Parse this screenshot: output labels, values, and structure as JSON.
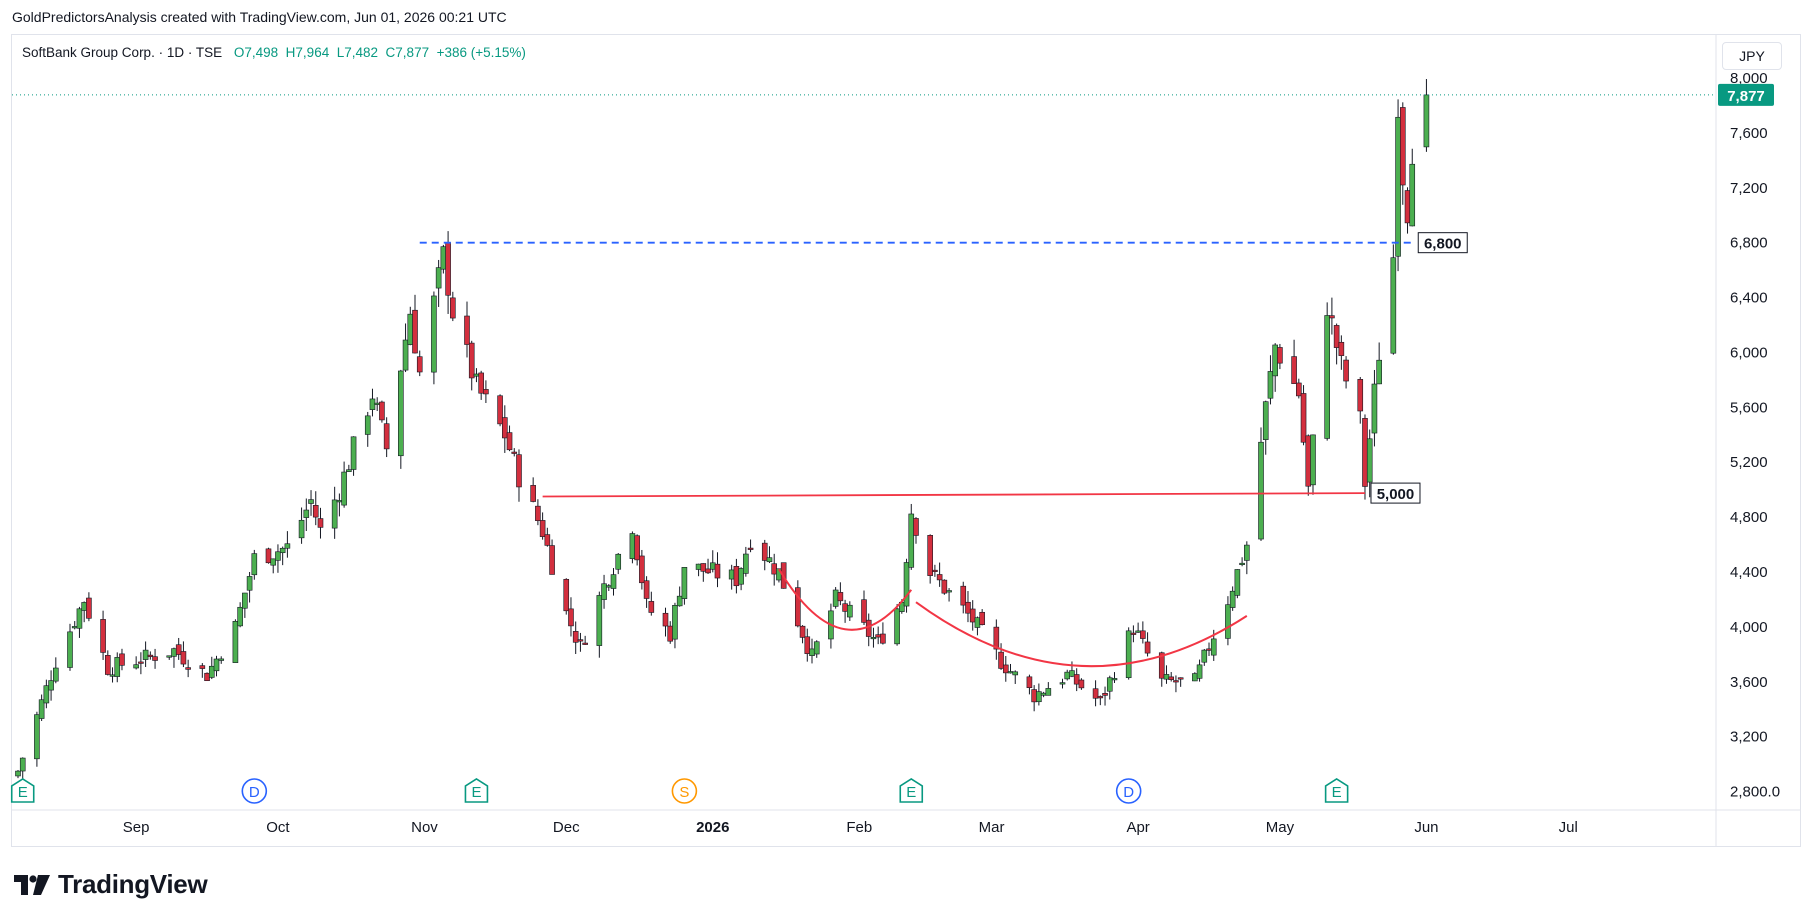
{
  "header": {
    "credit": "GoldPredictorsAnalysis created with TradingView.com, Jun 01, 2026 00:21 UTC"
  },
  "legend": {
    "symbol": "SoftBank Group Corp. · 1D · TSE",
    "open": "O7,498",
    "high": "H7,964",
    "low": "L7,482",
    "close": "C7,877",
    "change": "+386 (+5.15%)"
  },
  "currency": "JPY",
  "brand": {
    "name": "TradingView"
  },
  "colors": {
    "up": "#089981",
    "up_fill": "#4caf50",
    "down": "#f23645",
    "down_fill": "#d32f3e",
    "level_line": "#f23645",
    "resistance_line": "#2962ff",
    "grid": "#f0f3fa",
    "last_price": "#089981",
    "event_earnings": "#089981",
    "event_dividend": "#2962ff",
    "event_split": "#ff9800"
  },
  "chart_data": {
    "type": "candlestick",
    "y_axis_ticks": [
      "8,000",
      "7,600",
      "7,200",
      "6,800",
      "6,400",
      "6,000",
      "5,600",
      "5,200",
      "4,800",
      "4,400",
      "4,000",
      "3,600",
      "3,200",
      "2,800.0"
    ],
    "y_tick_values": [
      8000,
      7600,
      7200,
      6800,
      6400,
      6000,
      5600,
      5200,
      4800,
      4400,
      4000,
      3600,
      3200,
      2800
    ],
    "ylim": [
      2680,
      8350
    ],
    "x_axis_labels": [
      {
        "label": "Sep",
        "date": "2025-09-01"
      },
      {
        "label": "Oct",
        "date": "2025-10-01"
      },
      {
        "label": "Nov",
        "date": "2025-11-01"
      },
      {
        "label": "Dec",
        "date": "2025-12-01"
      },
      {
        "label": "2026",
        "date": "2026-01-01"
      },
      {
        "label": "Feb",
        "date": "2026-02-01"
      },
      {
        "label": "Mar",
        "date": "2026-03-01"
      },
      {
        "label": "Apr",
        "date": "2026-04-01"
      },
      {
        "label": "May",
        "date": "2026-05-01"
      },
      {
        "label": "Jun",
        "date": "2026-06-01"
      },
      {
        "label": "Jul",
        "date": "2026-07-01"
      }
    ],
    "x_date_range": [
      "2025-08-07",
      "2026-07-31"
    ],
    "last_price": {
      "value": 7877,
      "label": "7,877"
    },
    "levels": [
      {
        "value": 6800,
        "label": "6,800",
        "style": "dashed",
        "color": "#2962ff",
        "from": "2025-10-31",
        "to": "2026-05-29"
      },
      {
        "value": 4950,
        "value_end": 4975,
        "label": "5,000",
        "style": "solid",
        "color": "#f23645",
        "from": "2025-11-26",
        "to": "2026-05-19"
      }
    ],
    "arcs": [
      {
        "name": "cup-left",
        "from": "2026-01-15",
        "to": "2026-02-12",
        "start": 4420,
        "bottom": 3620,
        "end": 4270
      },
      {
        "name": "cup-main",
        "from": "2026-02-13",
        "to": "2026-04-24",
        "start": 4180,
        "bottom": 3300,
        "end": 4080
      }
    ],
    "events": [
      {
        "letter": "E",
        "date": "2025-08-08",
        "kind": "earnings"
      },
      {
        "letter": "D",
        "date": "2025-09-26",
        "kind": "dividend"
      },
      {
        "letter": "E",
        "date": "2025-11-12",
        "kind": "earnings"
      },
      {
        "letter": "S",
        "date": "2025-12-26",
        "kind": "split"
      },
      {
        "letter": "E",
        "date": "2026-02-12",
        "kind": "earnings"
      },
      {
        "letter": "D",
        "date": "2026-03-30",
        "kind": "dividend"
      },
      {
        "letter": "E",
        "date": "2026-05-13",
        "kind": "earnings"
      }
    ],
    "anchors": [
      {
        "date": "2025-08-07",
        "close": 2950
      },
      {
        "date": "2025-08-15",
        "close": 3750
      },
      {
        "date": "2025-08-21",
        "close": 4200
      },
      {
        "date": "2025-08-26",
        "close": 3700
      },
      {
        "date": "2025-09-09",
        "close": 3830
      },
      {
        "date": "2025-09-16",
        "close": 3650
      },
      {
        "date": "2025-09-22",
        "close": 4000
      },
      {
        "date": "2025-09-26",
        "close": 4500
      },
      {
        "date": "2025-10-03",
        "close": 4580
      },
      {
        "date": "2025-10-08",
        "close": 4920
      },
      {
        "date": "2025-10-10",
        "close": 4700
      },
      {
        "date": "2025-10-14",
        "close": 5000
      },
      {
        "date": "2025-10-21",
        "close": 5700
      },
      {
        "date": "2025-10-24",
        "close": 5300
      },
      {
        "date": "2025-10-29",
        "close": 6300
      },
      {
        "date": "2025-10-31",
        "close": 5850
      },
      {
        "date": "2025-11-05",
        "close": 6700
      },
      {
        "date": "2025-11-07",
        "close": 6300
      },
      {
        "date": "2025-11-12",
        "close": 5750
      },
      {
        "date": "2025-11-18",
        "close": 5400
      },
      {
        "date": "2025-11-21",
        "close": 5100
      },
      {
        "date": "2025-11-26",
        "close": 4700
      },
      {
        "date": "2025-12-01",
        "close": 4100
      },
      {
        "date": "2025-12-04",
        "close": 3850
      },
      {
        "date": "2025-12-09",
        "close": 4300
      },
      {
        "date": "2025-12-15",
        "close": 4750
      },
      {
        "date": "2025-12-18",
        "close": 4150
      },
      {
        "date": "2025-12-23",
        "close": 3950
      },
      {
        "date": "2025-12-26",
        "close": 4450
      },
      {
        "date": "2026-01-06",
        "close": 4350
      },
      {
        "date": "2026-01-09",
        "close": 4650
      },
      {
        "date": "2026-01-15",
        "close": 4400
      },
      {
        "date": "2026-01-22",
        "close": 3780
      },
      {
        "date": "2026-01-27",
        "close": 4200
      },
      {
        "date": "2026-02-05",
        "close": 3880
      },
      {
        "date": "2026-02-10",
        "close": 4200
      },
      {
        "date": "2026-02-12",
        "close": 4850
      },
      {
        "date": "2026-02-16",
        "close": 4400
      },
      {
        "date": "2026-02-25",
        "close": 4050
      },
      {
        "date": "2026-03-03",
        "close": 3750
      },
      {
        "date": "2026-03-10",
        "close": 3500
      },
      {
        "date": "2026-03-17",
        "close": 3650
      },
      {
        "date": "2026-03-24",
        "close": 3450
      },
      {
        "date": "2026-03-31",
        "close": 4000
      },
      {
        "date": "2026-04-06",
        "close": 3600
      },
      {
        "date": "2026-04-13",
        "close": 3600
      },
      {
        "date": "2026-04-20",
        "close": 4200
      },
      {
        "date": "2026-04-24",
        "close": 4600
      },
      {
        "date": "2026-04-28",
        "close": 5600
      },
      {
        "date": "2026-04-30",
        "close": 6050
      },
      {
        "date": "2026-05-05",
        "close": 5700
      },
      {
        "date": "2026-05-07",
        "close": 5000
      },
      {
        "date": "2026-05-11",
        "close": 6350
      },
      {
        "date": "2026-05-14",
        "close": 5900
      },
      {
        "date": "2026-05-18",
        "close": 5500
      },
      {
        "date": "2026-05-19",
        "close": 5050
      },
      {
        "date": "2026-05-21",
        "close": 5700
      },
      {
        "date": "2026-05-22",
        "close": 6000
      },
      {
        "date": "2026-05-25",
        "close": 6700
      },
      {
        "date": "2026-05-26",
        "close": 7850
      },
      {
        "date": "2026-05-27",
        "close": 7300
      },
      {
        "date": "2026-05-28",
        "close": 7050
      },
      {
        "date": "2026-05-29",
        "close": 7500
      },
      {
        "date": "2026-06-01",
        "close": 7877
      }
    ]
  }
}
